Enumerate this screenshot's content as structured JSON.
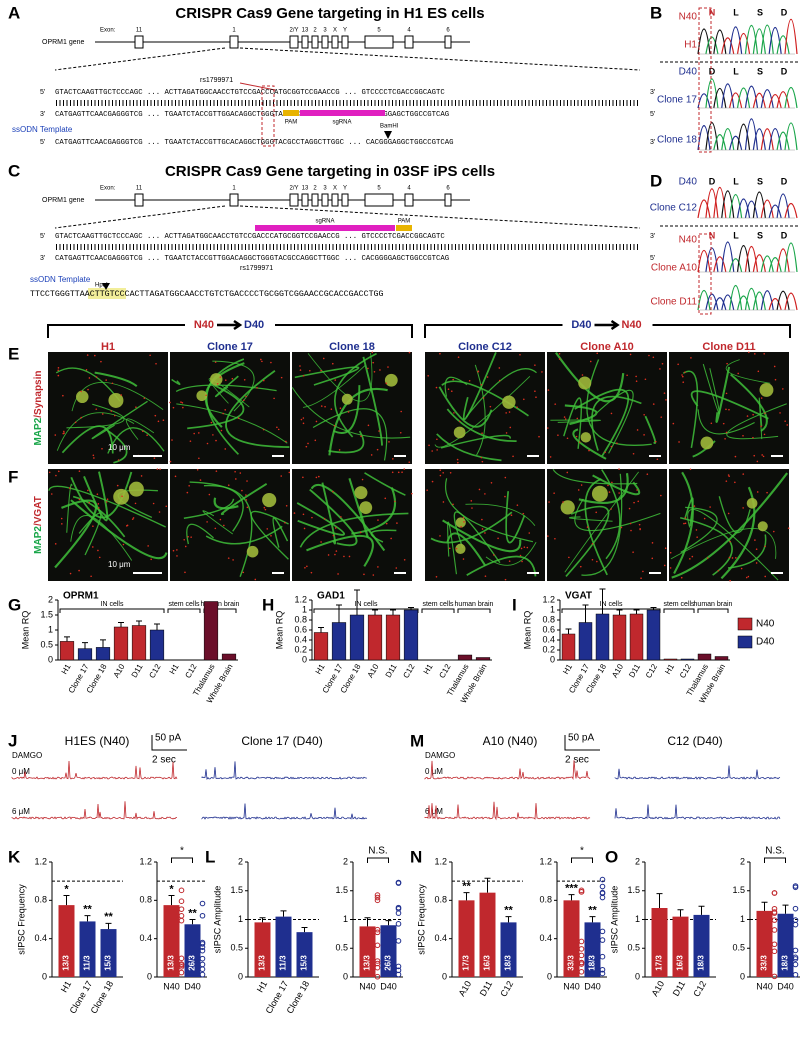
{
  "figure": {
    "panel_letters": [
      "A",
      "B",
      "C",
      "D",
      "E",
      "F",
      "G",
      "H",
      "I",
      "J",
      "K",
      "L",
      "M",
      "N",
      "O"
    ],
    "a": {
      "title": "CRISPR Cas9 Gene targeting in H1 ES cells",
      "gene": "OPRM1 gene",
      "exon_word": "Exon:",
      "exons": [
        "11",
        "1",
        "2/Y",
        "13",
        "2",
        "3",
        "X",
        "Y",
        "5",
        "4",
        "6"
      ],
      "snp": "rs1799971",
      "five": "5'",
      "three": "3'",
      "seq_top": "GTACTCAAGTTGCTCCCAGC ... ACTTAGATGGCAACCTGTCCGACCCATGCGGTCCGAACCG ... GTCCCCTCGACCGGCAGTC",
      "seq_bottom": "CATGAGTTCAACGAGGGTCG ... TGAATCTACCGTTGGACAGGCTGGGTACGCCAGGCTTGGC ... CACGGGGAGCTGGCCGTCAG",
      "template_label": "ssODN Template",
      "seq_template": "CATGAGTTCAACGAGGGTCG ... TGAATCTACCGTTGCACAGGCTGGGTACGCCTAGGCTTGGC ... CACGGGAGGCTGGCCGTCAG",
      "pam": "PAM",
      "sgrna": "sgRNA",
      "site": "BamHI"
    },
    "b": {
      "aa": [
        "N",
        "L",
        "S",
        "D"
      ],
      "aa2": [
        "D",
        "L",
        "S",
        "D"
      ],
      "labels": [
        "N40",
        "H1",
        "D40",
        "Clone 17",
        "Clone 18"
      ]
    },
    "c": {
      "title": "CRISPR Cas9 Gene targeting in 03SF iPS cells",
      "seq_top": "GTACTCAAGTTGCTCCCAGC ... ACTTAGATGGCAACCTGTCCGACCCATGCGGTCCGAACCG ... GTCCCCTCGACCGGCAGTC",
      "seq_bottom": "CATGAGTTCAACGAGGGTCG ... TGAATCTACCGTTGGACAGGCTGGGTACGCCAGGCTTGGC ... CACGGGGAGCTGGCCGTCAG",
      "template": "TTCCTGGGTTAACTTGTCCCACTTAGATGGCAACCTGTCTGACCCCTGCGGTCGGAACCGCACCGACCTGG",
      "site": "HpaI"
    },
    "d": {
      "labels": [
        "D40",
        "Clone C12",
        "N40",
        "Clone A10",
        "Clone D11"
      ]
    },
    "e": {
      "groups": [
        {
          "from": "N40",
          "to": "D40"
        },
        {
          "from": "D40",
          "to": "N40"
        }
      ],
      "columns": [
        "H1",
        "Clone 17",
        "Clone 18",
        "Clone C12",
        "Clone A10",
        "Clone D11"
      ],
      "stain": [
        "MAP2",
        "/Synapsin"
      ],
      "scale": "10 μm"
    },
    "f": {
      "stain": [
        "MAP2",
        "/VGAT"
      ]
    },
    "j": {
      "left": "H1ES (N40)",
      "right": "Clone 17 (D40)",
      "scale_y": "50 pA",
      "scale_x": "2 sec",
      "drug": "DAMGO",
      "doses": [
        "0 μM",
        "6 μM"
      ]
    },
    "m": {
      "left": "A10 (N40)",
      "right": "C12 (D40)"
    },
    "charts": {
      "g": {
        "type": "bar",
        "title": "OPRM1",
        "y_label": "Mean RQ",
        "ylim": [
          0,
          2
        ],
        "yticks": [
          0,
          0.5,
          1,
          1.5,
          2
        ],
        "groups": [
          {
            "label": "IN cells",
            "categories": [
              "H1",
              "Clone 17",
              "Clone 18",
              "A10",
              "D11",
              "C12"
            ],
            "values": [
              0.62,
              0.38,
              0.42,
              1.1,
              1.15,
              1.0
            ],
            "errors": [
              0.15,
              0.2,
              0.25,
              0.15,
              0.15,
              0.2
            ],
            "colors": [
              "#c0282d",
              "#1f2f8f",
              "#1f2f8f",
              "#c0282d",
              "#c0282d",
              "#1f2f8f"
            ]
          },
          {
            "label": "stem cells",
            "categories": [
              "H1",
              "C12"
            ],
            "values": [
              0,
              0
            ],
            "colors": [
              "#c0282d",
              "#1f2f8f"
            ]
          },
          {
            "label": "human brain",
            "categories": [
              "Thalamus",
              "Whole Brain"
            ],
            "values": [
              1.95,
              0.2
            ],
            "colors": [
              "#6b0f2a",
              "#6b0f2a"
            ]
          }
        ]
      },
      "h": {
        "type": "bar",
        "title": "GAD1",
        "y_label": "Mean RQ",
        "ylim": [
          0,
          1.2
        ],
        "yticks": [
          0,
          0.2,
          0.4,
          0.6,
          0.8,
          1,
          1.2
        ],
        "groups": [
          {
            "label": "IN cells",
            "categories": [
              "H1",
              "Clone 17",
              "Clone 18",
              "A10",
              "D11",
              "C12"
            ],
            "values": [
              0.55,
              0.75,
              0.9,
              0.9,
              0.9,
              1.0
            ],
            "errors": [
              0.1,
              0.35,
              0.5,
              0.1,
              0.1,
              0.05
            ],
            "colors": [
              "#c0282d",
              "#1f2f8f",
              "#1f2f8f",
              "#c0282d",
              "#c0282d",
              "#1f2f8f"
            ]
          },
          {
            "label": "stem cells",
            "categories": [
              "H1",
              "C12"
            ],
            "values": [
              0,
              0
            ],
            "colors": [
              "#c0282d",
              "#1f2f8f"
            ]
          },
          {
            "label": "human brain",
            "categories": [
              "Thalamus",
              "Whole Brain"
            ],
            "values": [
              0.1,
              0.05
            ],
            "colors": [
              "#6b0f2a",
              "#6b0f2a"
            ]
          }
        ]
      },
      "i": {
        "type": "bar",
        "title": "VGAT",
        "y_label": "Mean RQ",
        "ylim": [
          0,
          1.2
        ],
        "yticks": [
          0,
          0.2,
          0.4,
          0.6,
          0.8,
          1,
          1.2
        ],
        "legend": [
          {
            "name": "N40",
            "color": "#c0282d"
          },
          {
            "name": "D40",
            "color": "#1f2f8f"
          }
        ],
        "groups": [
          {
            "label": "IN cells",
            "categories": [
              "H1",
              "Clone 17",
              "Clone 18",
              "A10",
              "D11",
              "C12"
            ],
            "values": [
              0.52,
              0.75,
              0.92,
              0.9,
              0.92,
              1.0
            ],
            "errors": [
              0.1,
              0.35,
              0.5,
              0.1,
              0.08,
              0.05
            ],
            "colors": [
              "#c0282d",
              "#1f2f8f",
              "#1f2f8f",
              "#c0282d",
              "#c0282d",
              "#1f2f8f"
            ]
          },
          {
            "label": "stem cells",
            "categories": [
              "H1",
              "C12"
            ],
            "values": [
              0.02,
              0.02
            ],
            "colors": [
              "#c0282d",
              "#1f2f8f"
            ]
          },
          {
            "label": "human brain",
            "categories": [
              "Thalamus",
              "Whole Brain"
            ],
            "values": [
              0.12,
              0.07
            ],
            "colors": [
              "#6b0f2a",
              "#6b0f2a"
            ]
          }
        ]
      },
      "k": {
        "type": "bar",
        "y_label": "sIPSC Frequency",
        "ylim": [
          0,
          1.2
        ],
        "yticks": [
          0,
          0.4,
          0.8,
          1.2
        ],
        "reference": 1,
        "subplots": [
          {
            "categories": [
              "H1",
              "Clone 17",
              "Clone 18"
            ],
            "values": [
              0.75,
              0.58,
              0.5
            ],
            "errors": [
              0.1,
              0.06,
              0.06
            ],
            "colors": [
              "#c0282d",
              "#1f2f8f",
              "#1f2f8f"
            ],
            "n_labels": [
              "13/3",
              "11/3",
              "15/3"
            ],
            "stars": [
              "*",
              "**",
              "**"
            ]
          },
          {
            "categories": [
              "N40",
              "D40"
            ],
            "values": [
              0.75,
              0.55
            ],
            "errors": [
              0.1,
              0.05
            ],
            "colors": [
              "#c0282d",
              "#1f2f8f"
            ],
            "n_labels": [
              "13/3",
              "26/3"
            ],
            "stars": [
              "*",
              "**"
            ],
            "bracket": "*"
          }
        ]
      },
      "l": {
        "type": "bar",
        "y_label": "sIPSC Amplitude",
        "ylim": [
          0,
          2
        ],
        "yticks": [
          0,
          0.5,
          1,
          1.5,
          2
        ],
        "reference": 1,
        "subplots": [
          {
            "categories": [
              "H1",
              "Clone 17",
              "Clone 18"
            ],
            "values": [
              0.95,
              1.05,
              0.78
            ],
            "errors": [
              0.08,
              0.1,
              0.08
            ],
            "colors": [
              "#c0282d",
              "#1f2f8f",
              "#1f2f8f"
            ],
            "n_labels": [
              "13/3",
              "11/3",
              "15/3"
            ]
          },
          {
            "categories": [
              "N40",
              "D40"
            ],
            "values": [
              0.88,
              0.9
            ],
            "errors": [
              0.15,
              0.08
            ],
            "colors": [
              "#c0282d",
              "#1f2f8f"
            ],
            "n_labels": [
              "13/3",
              "26/3"
            ],
            "bracket": "N.S."
          }
        ]
      },
      "n": {
        "type": "bar",
        "y_label": "sIPSC Frequency",
        "ylim": [
          0,
          1.2
        ],
        "yticks": [
          0,
          0.4,
          0.8,
          1.2
        ],
        "reference": 1,
        "subplots": [
          {
            "categories": [
              "A10",
              "D11",
              "C12"
            ],
            "values": [
              0.8,
              0.88,
              0.57
            ],
            "errors": [
              0.08,
              0.15,
              0.06
            ],
            "colors": [
              "#c0282d",
              "#c0282d",
              "#1f2f8f"
            ],
            "n_labels": [
              "17/3",
              "16/3",
              "18/3"
            ],
            "stars": [
              "**",
              null,
              "**"
            ]
          },
          {
            "categories": [
              "N40",
              "D40"
            ],
            "values": [
              0.8,
              0.57
            ],
            "errors": [
              0.06,
              0.06
            ],
            "colors": [
              "#c0282d",
              "#1f2f8f"
            ],
            "n_labels": [
              "33/3",
              "18/3"
            ],
            "stars": [
              "***",
              "**"
            ],
            "bracket": "*"
          }
        ]
      },
      "o": {
        "type": "bar",
        "y_label": "sIPSC Amplitude",
        "ylim": [
          0,
          2
        ],
        "yticks": [
          0,
          0.5,
          1,
          1.5,
          2
        ],
        "reference": 1,
        "subplots": [
          {
            "categories": [
              "A10",
              "D11",
              "C12"
            ],
            "values": [
              1.2,
              1.05,
              1.08
            ],
            "errors": [
              0.25,
              0.12,
              0.15
            ],
            "colors": [
              "#c0282d",
              "#c0282d",
              "#1f2f8f"
            ],
            "n_labels": [
              "17/3",
              "16/3",
              "18/3"
            ]
          },
          {
            "categories": [
              "N40",
              "D40"
            ],
            "values": [
              1.15,
              1.1
            ],
            "errors": [
              0.15,
              0.15
            ],
            "colors": [
              "#c0282d",
              "#1f2f8f"
            ],
            "n_labels": [
              "33/3",
              "18/3"
            ],
            "bracket": "N.S."
          }
        ]
      }
    }
  }
}
